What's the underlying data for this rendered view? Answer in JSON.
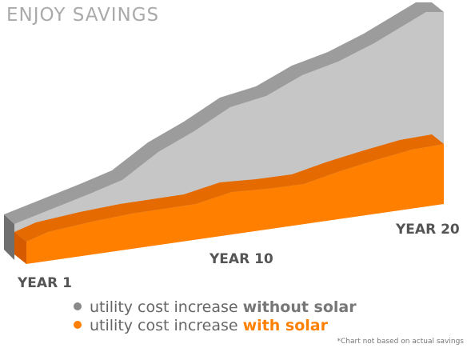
{
  "title": "ENJOY SAVINGS",
  "axis_labels": [
    "YEAR 1",
    "YEAR 10",
    "YEAR 20"
  ],
  "legend": [
    {
      "text": "utility cost increase",
      "emphasis": "without solar"
    },
    {
      "text": "utility cost increase",
      "emphasis": "with solar"
    }
  ],
  "footnote": "*Chart not based on actual savings"
}
